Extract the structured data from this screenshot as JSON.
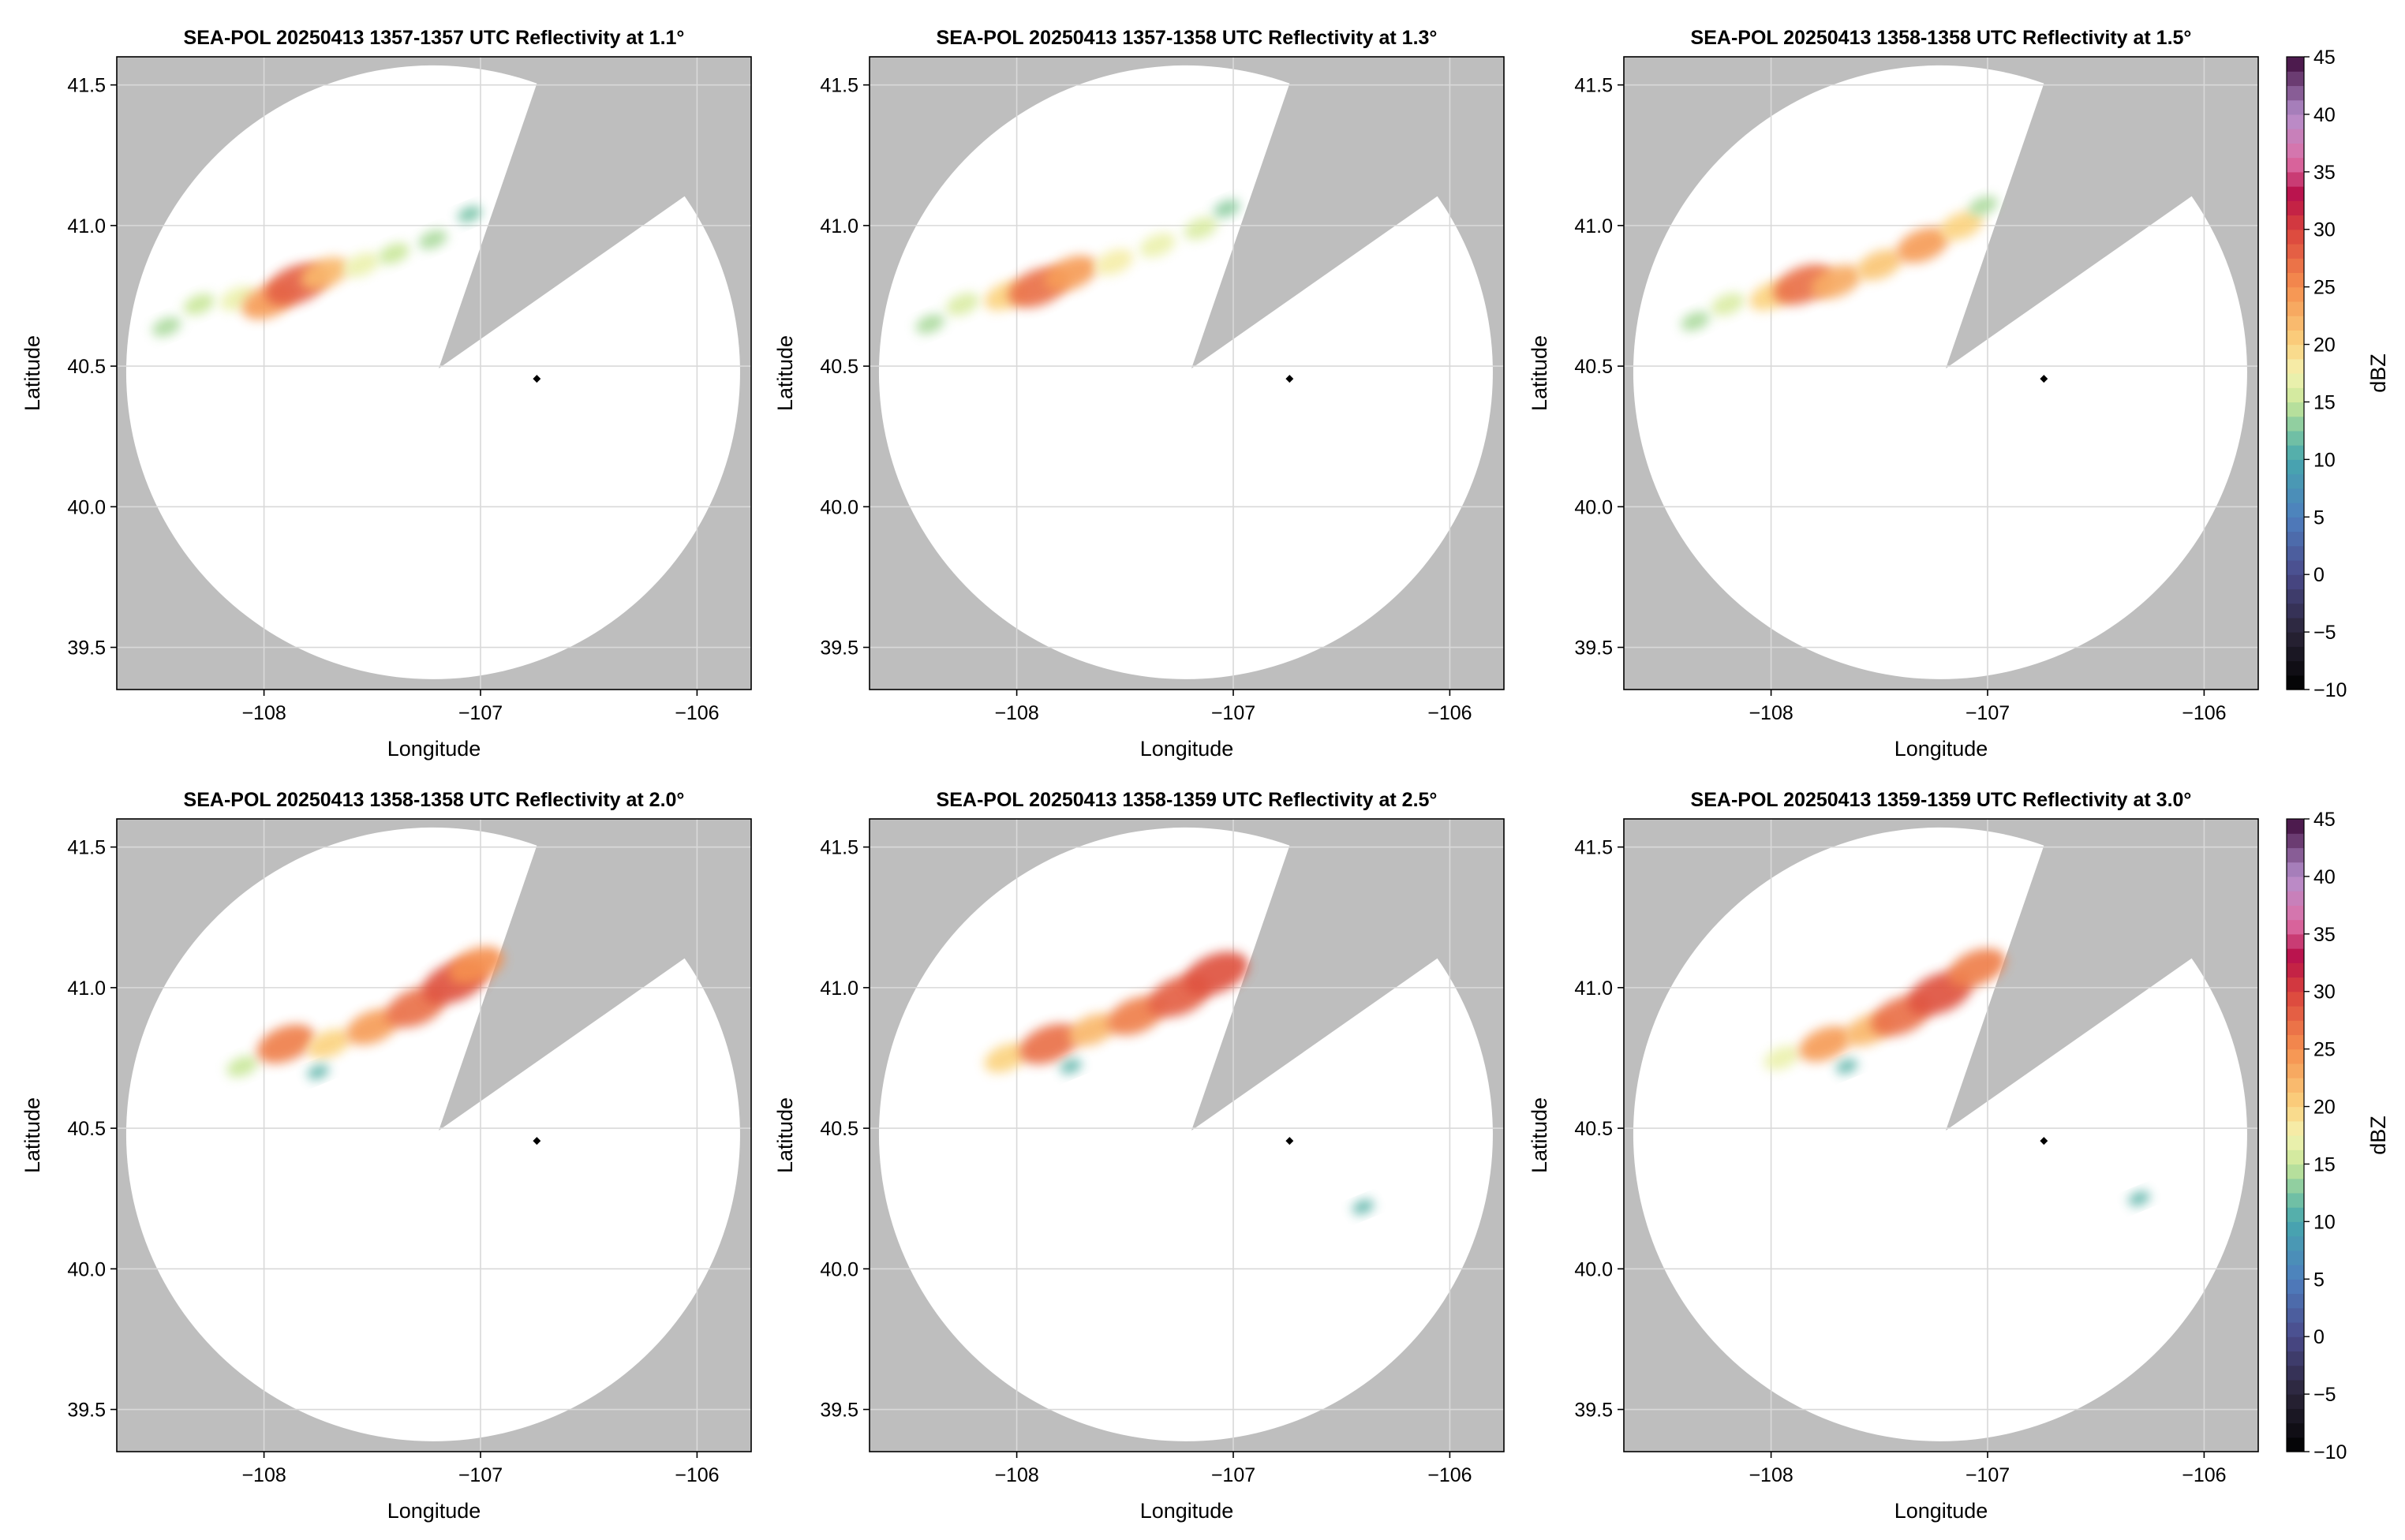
{
  "colors": {
    "outside_range": "#bebebe",
    "inside_range": "#ffffff",
    "grid": "#d9d9d9",
    "radar_site": "#000000"
  },
  "colorbar": {
    "label": "dBZ",
    "range": [
      -10,
      45
    ],
    "ticks": [
      "45",
      "40",
      "35",
      "30",
      "25",
      "20",
      "15",
      "10",
      "5",
      "0",
      "−5",
      "−10"
    ],
    "tick_values": [
      45,
      40,
      35,
      30,
      25,
      20,
      15,
      10,
      5,
      0,
      -5,
      -10
    ],
    "colormap_stops": [
      {
        "v": -10,
        "c": "#000000"
      },
      {
        "v": -5,
        "c": "#2a2438"
      },
      {
        "v": 0,
        "c": "#4a4a8a"
      },
      {
        "v": 5,
        "c": "#4e7fbe"
      },
      {
        "v": 10,
        "c": "#47a7ae"
      },
      {
        "v": 12.5,
        "c": "#7ec7a2"
      },
      {
        "v": 15,
        "c": "#c9e79a"
      },
      {
        "v": 17.5,
        "c": "#f4f3b2"
      },
      {
        "v": 20,
        "c": "#fbd380"
      },
      {
        "v": 25,
        "c": "#f5904f"
      },
      {
        "v": 30,
        "c": "#d9423d"
      },
      {
        "v": 33,
        "c": "#b8104a"
      },
      {
        "v": 36,
        "c": "#dd6fa6"
      },
      {
        "v": 40,
        "c": "#b58fcc"
      },
      {
        "v": 45,
        "c": "#3e0a3c"
      }
    ]
  },
  "chart_data": [
    {
      "type": "heatmap",
      "title": "SEA-POL 20250413 1357-1357 UTC Reflectivity at 1.1°",
      "xlabel": "Longitude",
      "ylabel": "Latitude",
      "xlim": [
        -108.68,
        -105.75
      ],
      "ylim": [
        39.35,
        41.6
      ],
      "xticks": [
        -108,
        -107,
        -106
      ],
      "xtick_labels": [
        "−108",
        "−107",
        "−106"
      ],
      "yticks": [
        39.5,
        40.0,
        40.5,
        41.0,
        41.5
      ],
      "ytick_labels": [
        "39.5",
        "40.0",
        "40.5",
        "41.0",
        "41.5"
      ],
      "grid": true,
      "radar_site": {
        "lon": -106.74,
        "lat": 40.455
      },
      "echo_cells": [
        {
          "lon": -108.3,
          "lat": 40.72,
          "dbz": 15
        },
        {
          "lon": -108.12,
          "lat": 40.74,
          "dbz": 17
        },
        {
          "lon": -107.98,
          "lat": 40.73,
          "dbz": 24
        },
        {
          "lon": -107.85,
          "lat": 40.79,
          "dbz": 28
        },
        {
          "lon": -107.72,
          "lat": 40.83,
          "dbz": 22
        },
        {
          "lon": -107.55,
          "lat": 40.86,
          "dbz": 17
        },
        {
          "lon": -107.4,
          "lat": 40.9,
          "dbz": 15
        },
        {
          "lon": -107.22,
          "lat": 40.95,
          "dbz": 14
        },
        {
          "lon": -107.05,
          "lat": 41.04,
          "dbz": 12
        },
        {
          "lon": -108.45,
          "lat": 40.64,
          "dbz": 14
        }
      ]
    },
    {
      "type": "heatmap",
      "title": "SEA-POL 20250413 1357-1358 UTC Reflectivity at 1.3°",
      "xlabel": "Longitude",
      "ylabel": "Latitude",
      "xlim": [
        -108.68,
        -105.75
      ],
      "ylim": [
        39.35,
        41.6
      ],
      "xticks": [
        -108,
        -107,
        -106
      ],
      "xtick_labels": [
        "−108",
        "−107",
        "−106"
      ],
      "yticks": [
        39.5,
        40.0,
        40.5,
        41.0,
        41.5
      ],
      "ytick_labels": [
        "39.5",
        "40.0",
        "40.5",
        "41.0",
        "41.5"
      ],
      "grid": true,
      "radar_site": {
        "lon": -106.74,
        "lat": 40.455
      },
      "echo_cells": [
        {
          "lon": -108.25,
          "lat": 40.72,
          "dbz": 16
        },
        {
          "lon": -108.05,
          "lat": 40.75,
          "dbz": 20
        },
        {
          "lon": -107.9,
          "lat": 40.78,
          "dbz": 27
        },
        {
          "lon": -107.75,
          "lat": 40.83,
          "dbz": 24
        },
        {
          "lon": -107.55,
          "lat": 40.87,
          "dbz": 18
        },
        {
          "lon": -107.35,
          "lat": 40.93,
          "dbz": 17
        },
        {
          "lon": -107.15,
          "lat": 40.99,
          "dbz": 16
        },
        {
          "lon": -107.03,
          "lat": 41.06,
          "dbz": 13
        },
        {
          "lon": -108.4,
          "lat": 40.65,
          "dbz": 14
        }
      ]
    },
    {
      "type": "heatmap",
      "title": "SEA-POL 20250413 1358-1358 UTC Reflectivity at 1.5°",
      "xlabel": "Longitude",
      "ylabel": "Latitude",
      "xlim": [
        -108.68,
        -105.75
      ],
      "ylim": [
        39.35,
        41.6
      ],
      "xticks": [
        -108,
        -107,
        -106
      ],
      "xtick_labels": [
        "−108",
        "−107",
        "−106"
      ],
      "yticks": [
        39.5,
        40.0,
        40.5,
        41.0,
        41.5
      ],
      "ytick_labels": [
        "39.5",
        "40.0",
        "40.5",
        "41.0",
        "41.5"
      ],
      "grid": true,
      "radar_site": {
        "lon": -106.74,
        "lat": 40.455
      },
      "echo_cells": [
        {
          "lon": -108.2,
          "lat": 40.72,
          "dbz": 16
        },
        {
          "lon": -108.0,
          "lat": 40.75,
          "dbz": 20
        },
        {
          "lon": -107.85,
          "lat": 40.79,
          "dbz": 27
        },
        {
          "lon": -107.7,
          "lat": 40.8,
          "dbz": 23
        },
        {
          "lon": -107.5,
          "lat": 40.86,
          "dbz": 21
        },
        {
          "lon": -107.3,
          "lat": 40.93,
          "dbz": 24
        },
        {
          "lon": -107.12,
          "lat": 41.0,
          "dbz": 20
        },
        {
          "lon": -107.02,
          "lat": 41.07,
          "dbz": 14
        },
        {
          "lon": -108.35,
          "lat": 40.66,
          "dbz": 14
        }
      ]
    },
    {
      "type": "heatmap",
      "title": "SEA-POL 20250413 1358-1358 UTC Reflectivity at 2.0°",
      "xlabel": "Longitude",
      "ylabel": "Latitude",
      "xlim": [
        -108.68,
        -105.75
      ],
      "ylim": [
        39.35,
        41.6
      ],
      "xticks": [
        -108,
        -107,
        -106
      ],
      "xtick_labels": [
        "−108",
        "−107",
        "−106"
      ],
      "yticks": [
        39.5,
        40.0,
        40.5,
        41.0,
        41.5
      ],
      "ytick_labels": [
        "39.5",
        "40.0",
        "40.5",
        "41.0",
        "41.5"
      ],
      "grid": true,
      "radar_site": {
        "lon": -106.74,
        "lat": 40.455
      },
      "echo_cells": [
        {
          "lon": -108.1,
          "lat": 40.72,
          "dbz": 15
        },
        {
          "lon": -107.9,
          "lat": 40.8,
          "dbz": 26
        },
        {
          "lon": -107.7,
          "lat": 40.8,
          "dbz": 20
        },
        {
          "lon": -107.5,
          "lat": 40.86,
          "dbz": 24
        },
        {
          "lon": -107.3,
          "lat": 40.93,
          "dbz": 27
        },
        {
          "lon": -107.12,
          "lat": 41.02,
          "dbz": 29
        },
        {
          "lon": -107.02,
          "lat": 41.08,
          "dbz": 25
        },
        {
          "lon": -107.75,
          "lat": 40.7,
          "dbz": 11
        }
      ]
    },
    {
      "type": "heatmap",
      "title": "SEA-POL 20250413 1358-1359 UTC Reflectivity at 2.5°",
      "xlabel": "Longitude",
      "ylabel": "Latitude",
      "xlim": [
        -108.68,
        -105.75
      ],
      "ylim": [
        39.35,
        41.6
      ],
      "xticks": [
        -108,
        -107,
        -106
      ],
      "xtick_labels": [
        "−108",
        "−107",
        "−106"
      ],
      "yticks": [
        39.5,
        40.0,
        40.5,
        41.0,
        41.5
      ],
      "ytick_labels": [
        "39.5",
        "40.0",
        "40.5",
        "41.0",
        "41.5"
      ],
      "grid": true,
      "radar_site": {
        "lon": -106.74,
        "lat": 40.455
      },
      "echo_cells": [
        {
          "lon": -108.05,
          "lat": 40.75,
          "dbz": 20
        },
        {
          "lon": -107.85,
          "lat": 40.8,
          "dbz": 27
        },
        {
          "lon": -107.65,
          "lat": 40.85,
          "dbz": 22
        },
        {
          "lon": -107.45,
          "lat": 40.9,
          "dbz": 26
        },
        {
          "lon": -107.25,
          "lat": 40.97,
          "dbz": 28
        },
        {
          "lon": -107.08,
          "lat": 41.05,
          "dbz": 29
        },
        {
          "lon": -107.75,
          "lat": 40.72,
          "dbz": 11
        },
        {
          "lon": -106.4,
          "lat": 40.22,
          "dbz": 11
        }
      ]
    },
    {
      "type": "heatmap",
      "title": "SEA-POL 20250413 1359-1359 UTC Reflectivity at 3.0°",
      "xlabel": "Longitude",
      "ylabel": "Latitude",
      "xlim": [
        -108.68,
        -105.75
      ],
      "ylim": [
        39.35,
        41.6
      ],
      "xticks": [
        -108,
        -107,
        -106
      ],
      "xtick_labels": [
        "−108",
        "−107",
        "−106"
      ],
      "yticks": [
        39.5,
        40.0,
        40.5,
        41.0,
        41.5
      ],
      "ytick_labels": [
        "39.5",
        "40.0",
        "40.5",
        "41.0",
        "41.5"
      ],
      "grid": true,
      "radar_site": {
        "lon": -106.74,
        "lat": 40.455
      },
      "echo_cells": [
        {
          "lon": -107.95,
          "lat": 40.75,
          "dbz": 17
        },
        {
          "lon": -107.75,
          "lat": 40.8,
          "dbz": 24
        },
        {
          "lon": -107.55,
          "lat": 40.85,
          "dbz": 22
        },
        {
          "lon": -107.4,
          "lat": 40.9,
          "dbz": 27
        },
        {
          "lon": -107.22,
          "lat": 40.98,
          "dbz": 29
        },
        {
          "lon": -107.05,
          "lat": 41.07,
          "dbz": 26
        },
        {
          "lon": -107.65,
          "lat": 40.72,
          "dbz": 11
        },
        {
          "lon": -106.3,
          "lat": 40.25,
          "dbz": 11
        }
      ]
    }
  ]
}
